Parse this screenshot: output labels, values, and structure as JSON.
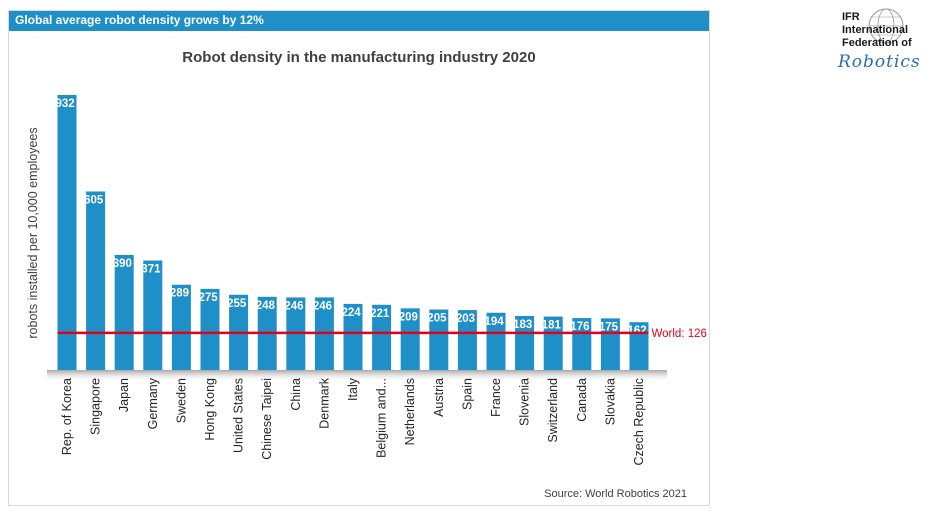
{
  "header": {
    "banner": "Global average robot density grows by 12%"
  },
  "logo": {
    "line1": "IFR",
    "line2": "International",
    "line3": "Federation of",
    "line4": "Robotics"
  },
  "source": "Source: World Robotics 2021",
  "colors": {
    "bar": "#1f8fc8",
    "world_line": "#e3001b",
    "banner": "#1f8fc8"
  },
  "chart_data": {
    "type": "bar",
    "title": "Robot density in the manufacturing industry 2020",
    "ylabel": "robots installed per 10,000 employees",
    "xlabel": "",
    "ylim": [
      0,
      950
    ],
    "grid": false,
    "categories": [
      "Rep. of Korea",
      "Singapore",
      "Japan",
      "Germany",
      "Sweden",
      "Hong Kong",
      "United States",
      "Chinese Taipei",
      "China",
      "Denmark",
      "Italy",
      "Belgium and...",
      "Netherlands",
      "Austria",
      "Spain",
      "France",
      "Slovenia",
      "Switzerland",
      "Canada",
      "Slovakia",
      "Czech Republic"
    ],
    "values": [
      932,
      605,
      390,
      371,
      289,
      275,
      255,
      248,
      246,
      246,
      224,
      221,
      209,
      205,
      203,
      194,
      183,
      181,
      176,
      175,
      162
    ],
    "reference_line": {
      "label": "World: 126",
      "value": 126
    }
  }
}
